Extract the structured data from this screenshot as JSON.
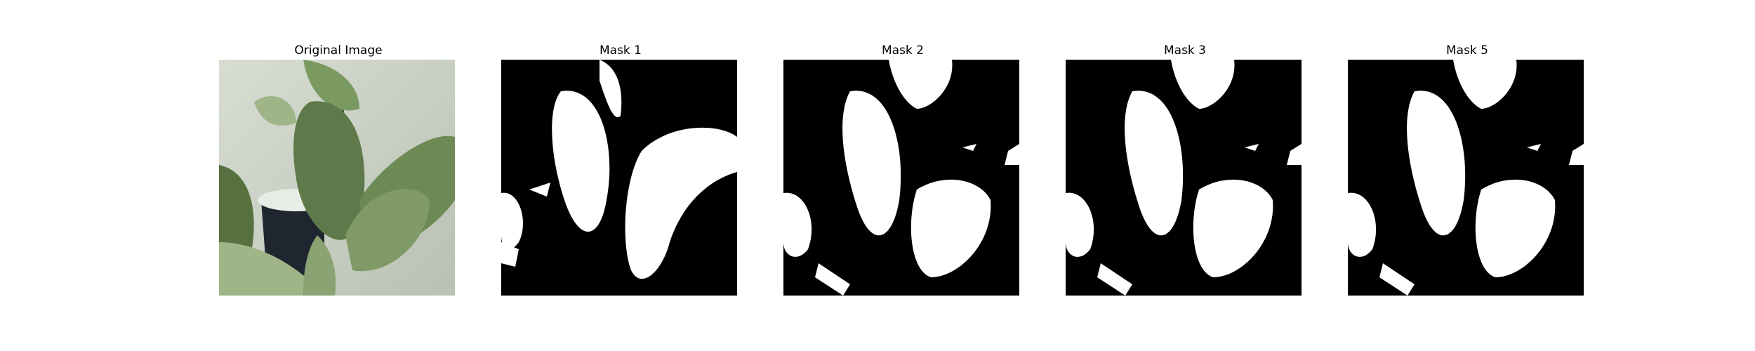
{
  "panels": [
    {
      "title": "Original Image"
    },
    {
      "title": "Mask 1"
    },
    {
      "title": "Mask 2"
    },
    {
      "title": "Mask 3"
    },
    {
      "title": "Mask 5"
    }
  ],
  "colors": {
    "background": "#ffffff",
    "mask_background": "#000000",
    "mask_foreground": "#ffffff",
    "photo_wall": "#c9d1c2",
    "leaf_dark": "#5f7a4a",
    "leaf_mid": "#7f9a66",
    "leaf_light": "#9fb587"
  }
}
